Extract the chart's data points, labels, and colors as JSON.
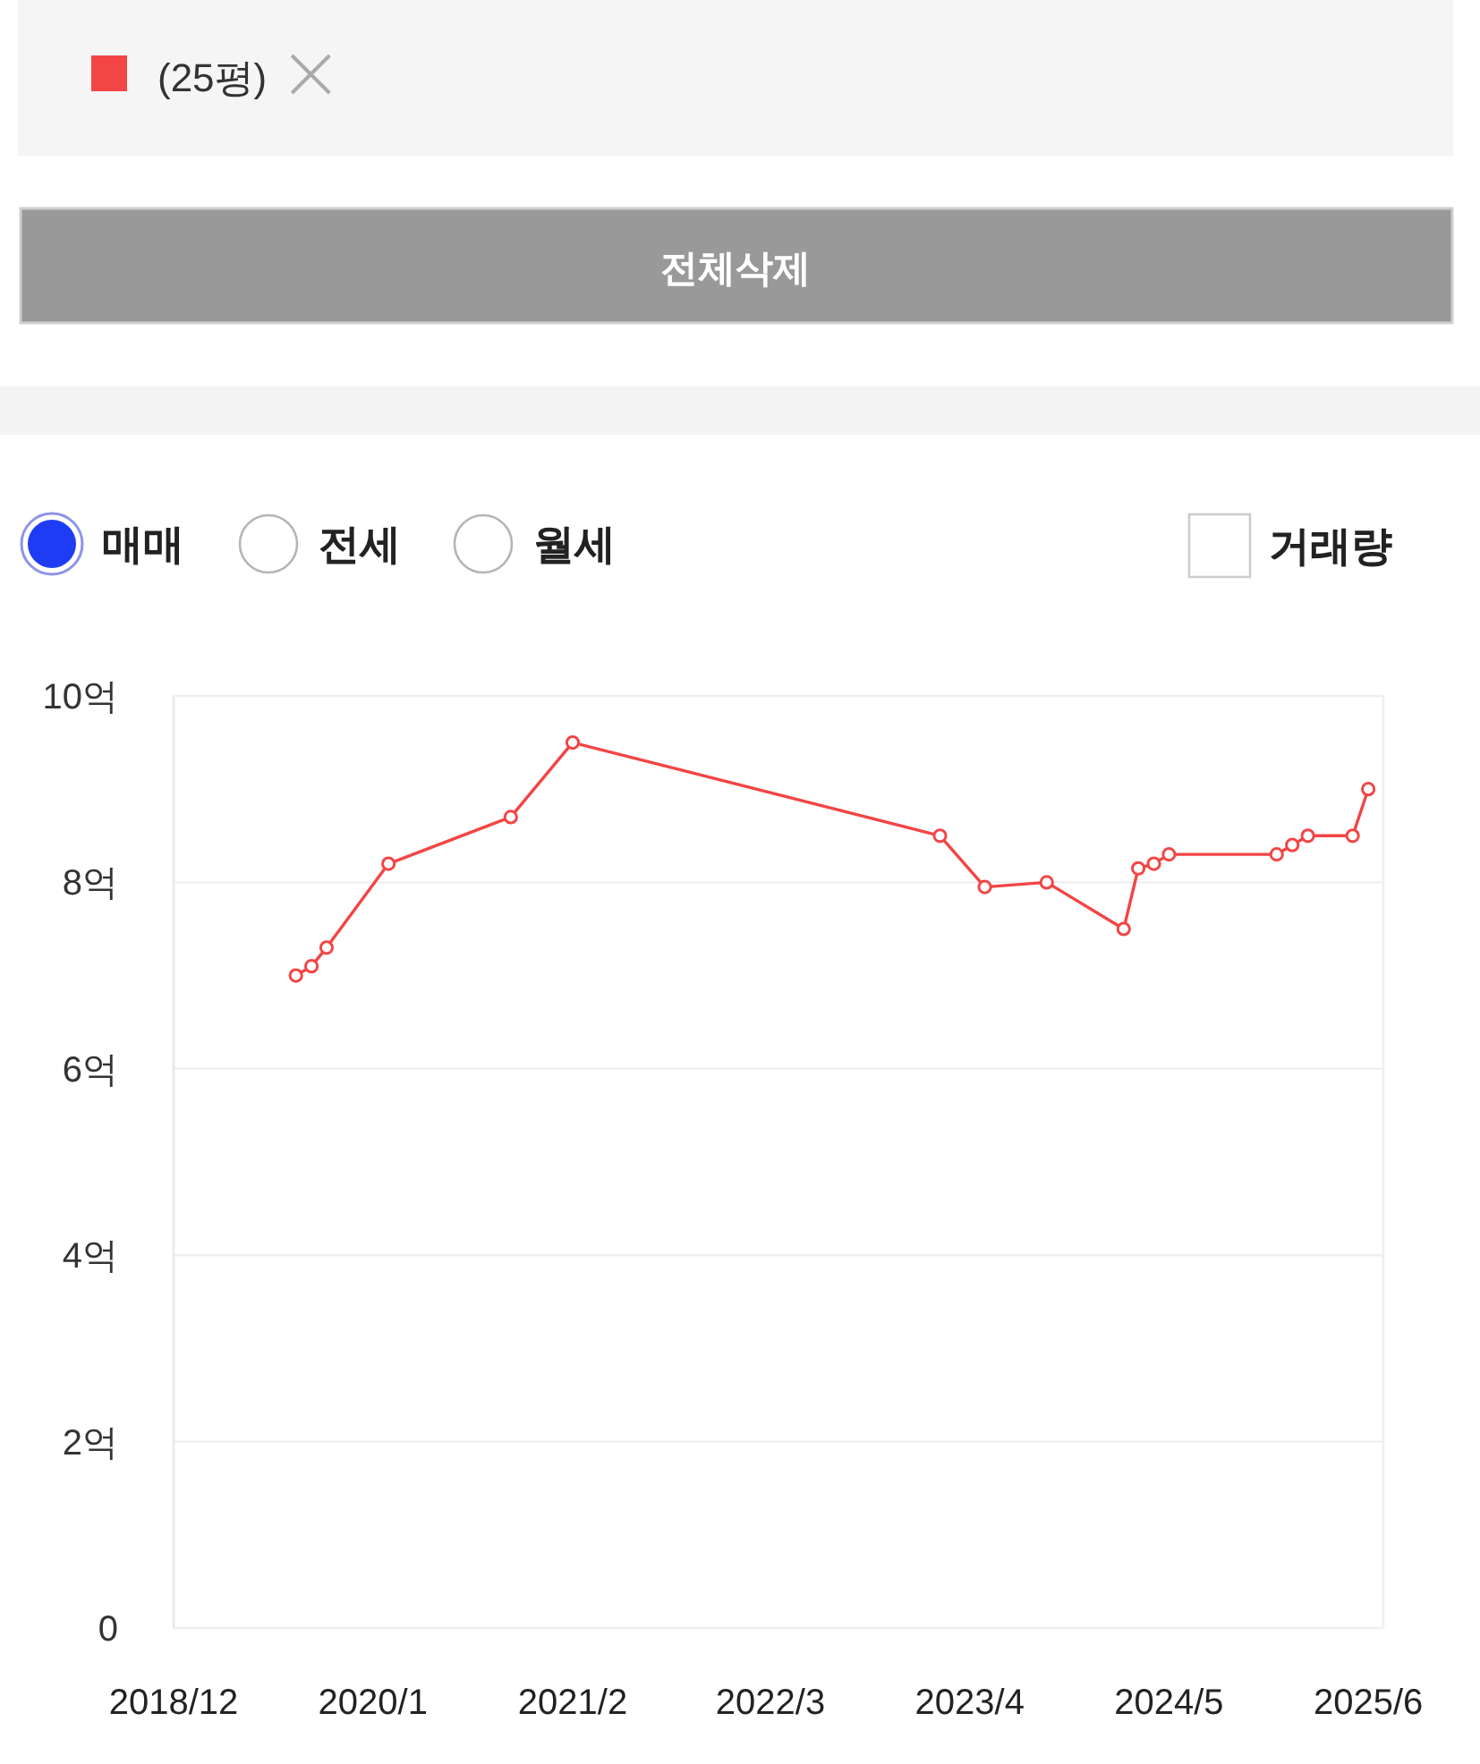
{
  "chart_data": {
    "type": "line",
    "x": [
      "2019-08",
      "2019-09",
      "2019-10",
      "2020-02",
      "2020-10",
      "2021-02",
      "2023-02",
      "2023-05",
      "2023-09",
      "2024-02",
      "2024-03",
      "2024-04",
      "2024-05",
      "2024-12",
      "2025-01",
      "2025-02",
      "2025-05",
      "2025-06"
    ],
    "series": [
      {
        "name": "(25평)",
        "color": "#f24545",
        "values": [
          7.0,
          7.1,
          7.3,
          8.2,
          8.7,
          9.5,
          8.5,
          7.95,
          8.0,
          7.5,
          8.15,
          8.2,
          8.3,
          8.3,
          8.4,
          8.5,
          8.5,
          9.0
        ]
      }
    ],
    "xlim": [
      "2018-12",
      "2025-07"
    ],
    "xticks": [
      {
        "value": "2018-12",
        "label": "2018/12"
      },
      {
        "value": "2020-01",
        "label": "2020/1"
      },
      {
        "value": "2021-02",
        "label": "2021/2"
      },
      {
        "value": "2022-03",
        "label": "2022/3"
      },
      {
        "value": "2023-04",
        "label": "2023/4"
      },
      {
        "value": "2024-05",
        "label": "2024/5"
      },
      {
        "value": "2025-06",
        "label": "2025/6"
      }
    ],
    "ylim": [
      0,
      10
    ],
    "yticks": [
      0,
      {
        "value": 2,
        "label": "2억"
      },
      {
        "value": 4,
        "label": "4억"
      },
      {
        "value": 6,
        "label": "6억"
      },
      {
        "value": 8,
        "label": "8억"
      },
      {
        "value": 10,
        "label": "10억"
      }
    ],
    "grid": "y",
    "marker": "circle",
    "line_style": "solid",
    "legend": "top left",
    "annotations": [
      "전체삭제",
      "매매",
      "전세",
      "월세",
      "거래량"
    ]
  }
}
